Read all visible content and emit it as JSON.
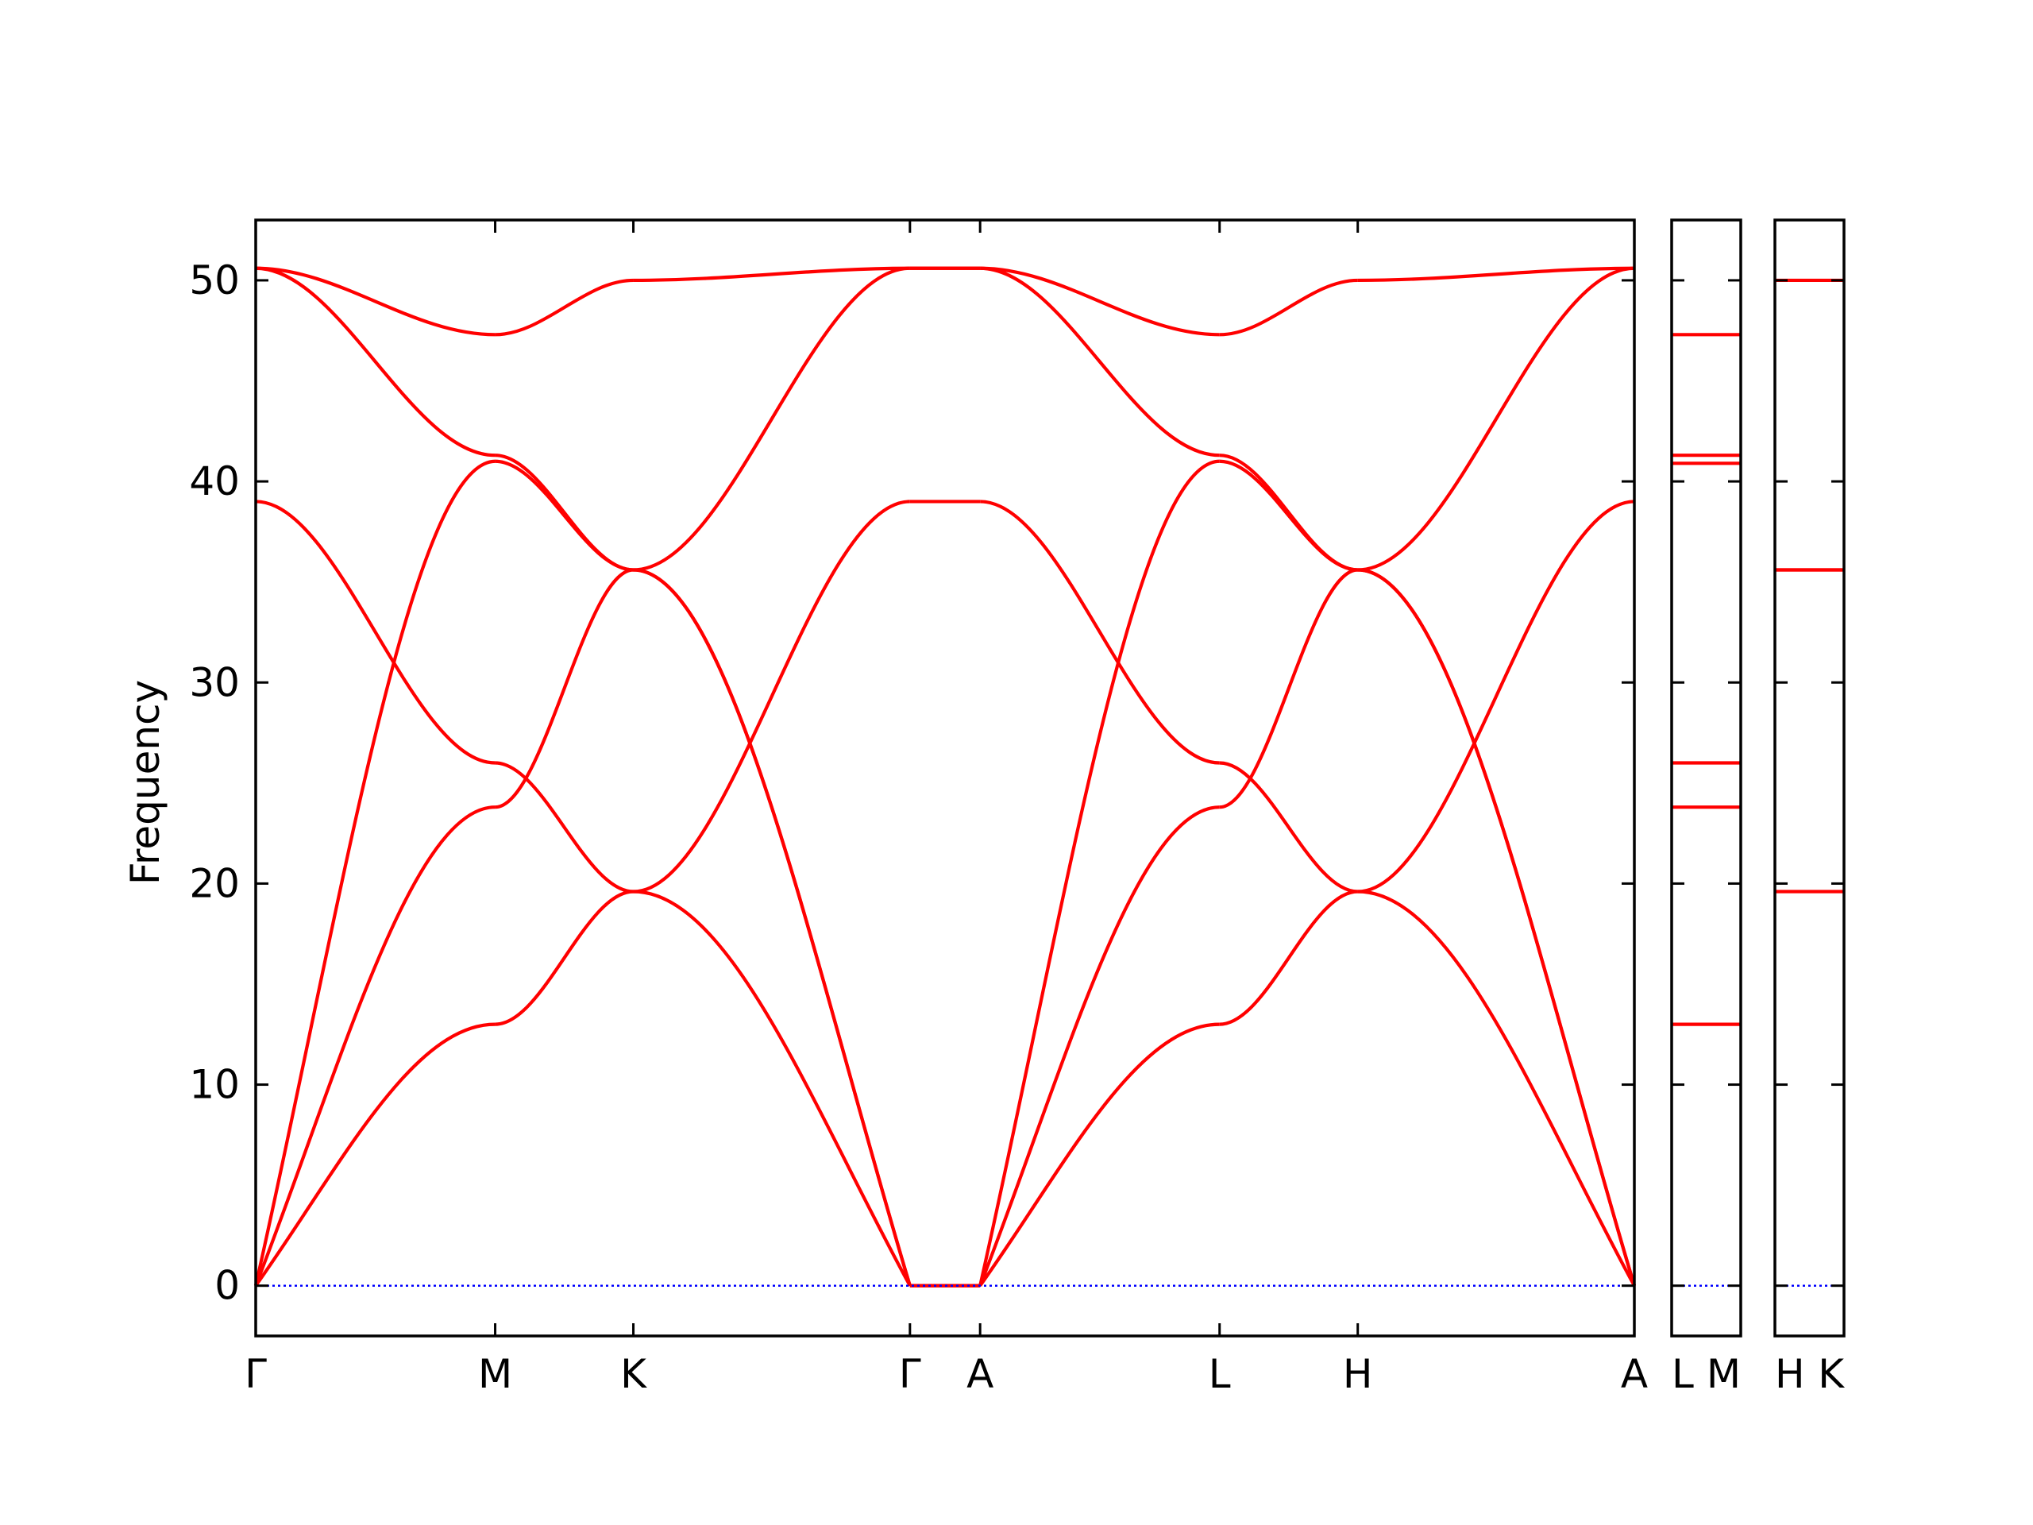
{
  "chart_data": {
    "type": "line",
    "title": "",
    "ylabel": "Frequency",
    "xlabel": "",
    "ylim": [
      -2.5,
      53
    ],
    "yticks": [
      0,
      10,
      20,
      30,
      40,
      50
    ],
    "grid": false,
    "legend": "none",
    "line_color": "#ff0000",
    "zero_line_color": "#0000ff",
    "panels": [
      {
        "name": "main",
        "ticks": [
          {
            "label": "Γ",
            "x": 0
          },
          {
            "label": "M",
            "x": 1
          },
          {
            "label": "K",
            "x": 1.577
          },
          {
            "label": "Γ",
            "x": 2.732
          },
          {
            "label": "A",
            "x": 3.025
          },
          {
            "label": "L",
            "x": 4.025
          },
          {
            "label": "H",
            "x": 4.602
          },
          {
            "label": "A",
            "x": 5.757
          }
        ],
        "segments": [
          {
            "from": "Γ",
            "to": "M",
            "x0": 0,
            "x1": 1,
            "bands": [
              [
                0,
                13
              ],
              [
                0,
                23.8
              ],
              [
                0,
                41
              ],
              [
                39,
                26
              ],
              [
                50.6,
                41.3
              ],
              [
                50.6,
                47.3
              ]
            ]
          },
          {
            "from": "M",
            "to": "K",
            "x0": 1,
            "x1": 1.577,
            "bands": [
              [
                13,
                19.6
              ],
              [
                23.8,
                35.6
              ],
              [
                41,
                35.6
              ],
              [
                26,
                19.6
              ],
              [
                41.3,
                35.6
              ],
              [
                47.3,
                50
              ]
            ]
          },
          {
            "from": "K",
            "to": "Γ",
            "x0": 1.577,
            "x1": 2.732,
            "bands": [
              [
                19.6,
                39
              ],
              [
                35.6,
                50.6
              ],
              [
                35.6,
                0
              ],
              [
                19.6,
                0
              ],
              [
                35.6,
                0
              ],
              [
                50,
                50.6
              ]
            ]
          },
          {
            "from": "Γ",
            "to": "A",
            "x0": 2.732,
            "x1": 3.025,
            "bands": [
              [
                0,
                0
              ],
              [
                0,
                0
              ],
              [
                0,
                0
              ],
              [
                39,
                39
              ],
              [
                50.6,
                50.6
              ],
              [
                50.6,
                50.6
              ]
            ]
          },
          {
            "from": "A",
            "to": "L",
            "x0": 3.025,
            "x1": 4.025,
            "bands": [
              [
                0,
                13
              ],
              [
                0,
                23.8
              ],
              [
                0,
                41
              ],
              [
                39,
                26
              ],
              [
                50.6,
                41.3
              ],
              [
                50.6,
                47.3
              ]
            ]
          },
          {
            "from": "L",
            "to": "H",
            "x0": 4.025,
            "x1": 4.602,
            "bands": [
              [
                13,
                19.6
              ],
              [
                23.8,
                35.6
              ],
              [
                41,
                35.6
              ],
              [
                26,
                19.6
              ],
              [
                41.3,
                35.6
              ],
              [
                47.3,
                50
              ]
            ]
          },
          {
            "from": "H",
            "to": "A",
            "x0": 4.602,
            "x1": 5.757,
            "bands": [
              [
                19.6,
                39
              ],
              [
                35.6,
                50.6
              ],
              [
                35.6,
                0
              ],
              [
                19.6,
                0
              ],
              [
                35.6,
                0
              ],
              [
                50,
                50.6
              ]
            ]
          }
        ]
      },
      {
        "name": "L-M",
        "ticks": [
          {
            "label": "L",
            "x": 0
          },
          {
            "label": "M",
            "x": 1
          }
        ],
        "flat_bands": [
          13,
          23.8,
          26,
          40.9,
          41.3,
          47.3
        ]
      },
      {
        "name": "H-K",
        "ticks": [
          {
            "label": "H",
            "x": 0
          },
          {
            "label": "K",
            "x": 1
          }
        ],
        "flat_bands": [
          19.6,
          35.6,
          35.6,
          50
        ]
      }
    ]
  }
}
